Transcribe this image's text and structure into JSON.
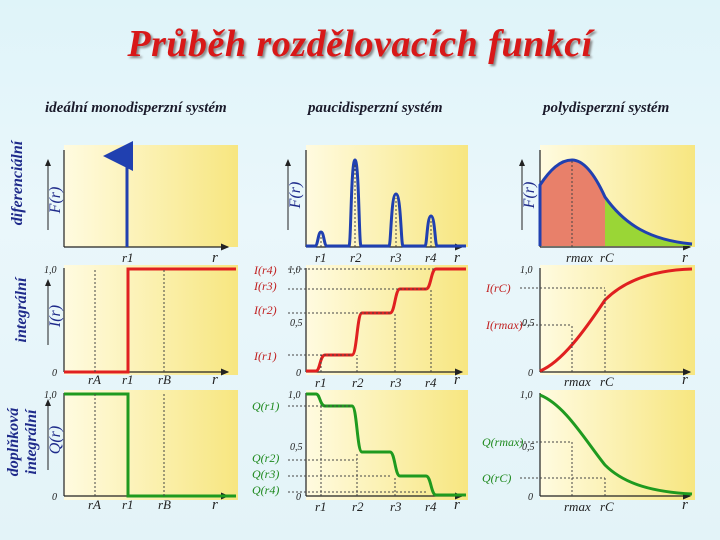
{
  "title": "Průběh rozdělovacích funkcí",
  "columns": [
    "ideální monodisperzní systém",
    "paucidisperzní systém",
    "polydisperzní systém"
  ],
  "rows": [
    {
      "label": "diferenciální",
      "axis": "F(r)"
    },
    {
      "label": "integrální",
      "axis": "I(r)"
    },
    {
      "label1": "doplňková",
      "label2": "integrální",
      "axis": "Q(r)"
    }
  ],
  "axes": {
    "x": "r",
    "tick_one": "1,0",
    "tick_half": "0,5",
    "tick_zero": "0"
  },
  "labels": {
    "mono_r1": "r1",
    "mono_rA": "rA",
    "mono_rB": "rB",
    "pauci_r1": "r1",
    "pauci_r2": "r2",
    "pauci_r3": "r3",
    "pauci_r4": "r4",
    "pauci_I4": "I(r4)",
    "pauci_I3": "I(r3)",
    "pauci_I2": "I(r2)",
    "pauci_I1": "I(r1)",
    "pauci_Q1": "Q(r1)",
    "pauci_Q2": "Q(r2)",
    "pauci_Q3": "Q(r3)",
    "pauci_Q4": "Q(r4)",
    "poly_rmax": "rmax",
    "poly_rC": "rC",
    "poly_IrC": "I(rC)",
    "poly_Irmax": "I(rmax)",
    "poly_Qrmax": "Q(rmax)",
    "poly_QrC": "Q(rC)"
  },
  "colors": {
    "differential": "#2040b0",
    "integral": "#e02020",
    "complementary": "#1f9a1f",
    "area_left": "#e8806a",
    "area_right": "#9ad636"
  }
}
